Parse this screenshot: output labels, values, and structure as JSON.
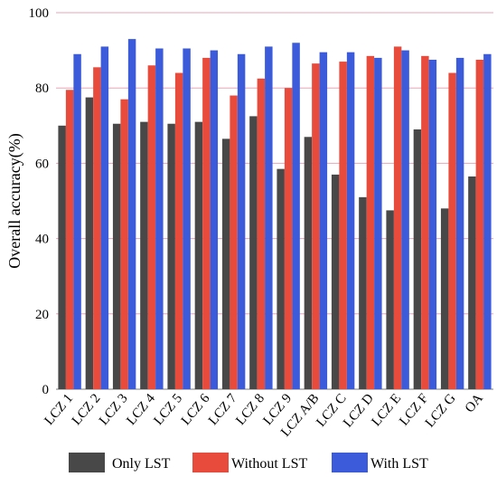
{
  "chart_data": {
    "type": "bar",
    "ylabel": "Overall accuracy(%)",
    "xlabel": "",
    "ylim": [
      0,
      100
    ],
    "yticks": [
      0,
      20,
      40,
      60,
      80,
      100
    ],
    "grid": true,
    "legend_position": "bottom",
    "categories": [
      "LCZ 1",
      "LCZ 2",
      "LCZ 3",
      "LCZ 4",
      "LCZ 5",
      "LCZ 6",
      "LCZ 7",
      "LCZ 8",
      "LCZ 9",
      "LCZ A/B",
      "LCZ C",
      "LCZ D",
      "LCZ E",
      "LCZ F",
      "LCZ G",
      "OA"
    ],
    "series": [
      {
        "name": "Only LST",
        "color": "#484848",
        "values": [
          70,
          77.5,
          70.5,
          71,
          70.5,
          71,
          66.5,
          72.5,
          58.5,
          67,
          57,
          51,
          47.5,
          69,
          48,
          56.5
        ]
      },
      {
        "name": "Without LST",
        "color": "#e84b3c",
        "values": [
          79.5,
          85.5,
          77,
          86,
          84,
          88,
          78,
          82.5,
          80,
          86.5,
          87,
          88.5,
          91,
          88.5,
          84,
          87.5
        ]
      },
      {
        "name": "With LST",
        "color": "#3b5bdb",
        "values": [
          89,
          91,
          93,
          90.5,
          90.5,
          90,
          89,
          91,
          92,
          89.5,
          89.5,
          88,
          90,
          87.5,
          88,
          89
        ]
      }
    ]
  }
}
